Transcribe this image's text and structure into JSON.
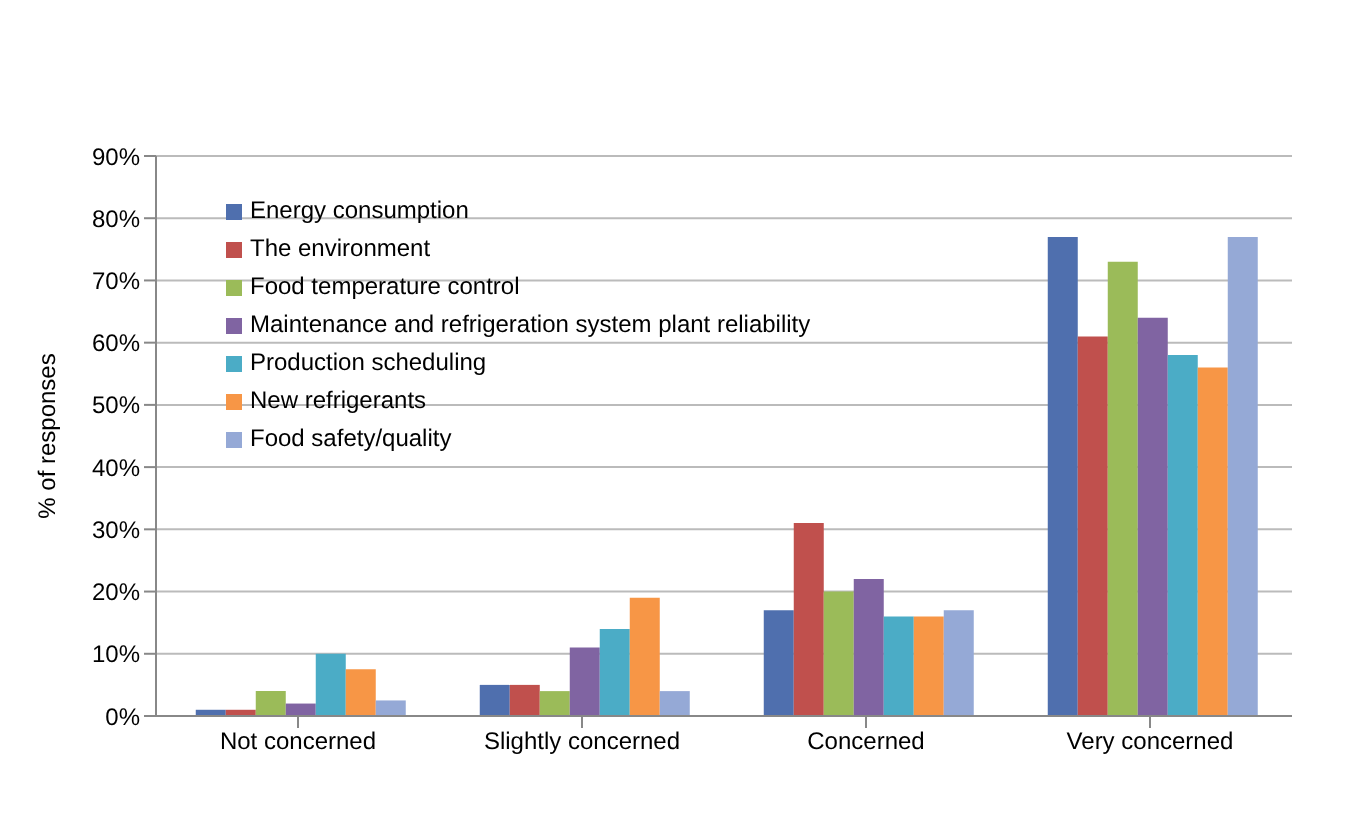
{
  "chart_data": {
    "type": "bar",
    "ylabel": "% of responses",
    "categories": [
      "Not concerned",
      "Slightly concerned",
      "Concerned",
      "Very concerned"
    ],
    "series": [
      {
        "name": "Energy consumption",
        "color": "#4f6fae",
        "values": [
          1,
          5,
          17,
          77
        ]
      },
      {
        "name": "The environment",
        "color": "#c0504d",
        "values": [
          1,
          5,
          31,
          61
        ]
      },
      {
        "name": "Food temperature control",
        "color": "#9bbb59",
        "values": [
          4,
          4,
          20,
          73
        ]
      },
      {
        "name": "Maintenance and refrigeration system plant reliability",
        "color": "#8064a2",
        "values": [
          2,
          11,
          22,
          64
        ]
      },
      {
        "name": "Production scheduling",
        "color": "#4bacc6",
        "values": [
          10,
          14,
          16,
          58
        ]
      },
      {
        "name": "New refrigerants",
        "color": "#f79646",
        "values": [
          7.5,
          19,
          16,
          56
        ]
      },
      {
        "name": "Food safety/quality",
        "color": "#95a9d6",
        "values": [
          2.5,
          4,
          17,
          77
        ]
      }
    ],
    "ylim": [
      0,
      90
    ],
    "yticks": [
      {
        "value": 0,
        "label": "0%"
      },
      {
        "value": 10,
        "label": "10%"
      },
      {
        "value": 20,
        "label": "20%"
      },
      {
        "value": 30,
        "label": "30%"
      },
      {
        "value": 40,
        "label": "40%"
      },
      {
        "value": 50,
        "label": "50%"
      },
      {
        "value": 60,
        "label": "60%"
      },
      {
        "value": 70,
        "label": "70%"
      },
      {
        "value": 80,
        "label": "80%"
      },
      {
        "value": 90,
        "label": "90%"
      }
    ],
    "grid": "y",
    "legend": "top left"
  }
}
